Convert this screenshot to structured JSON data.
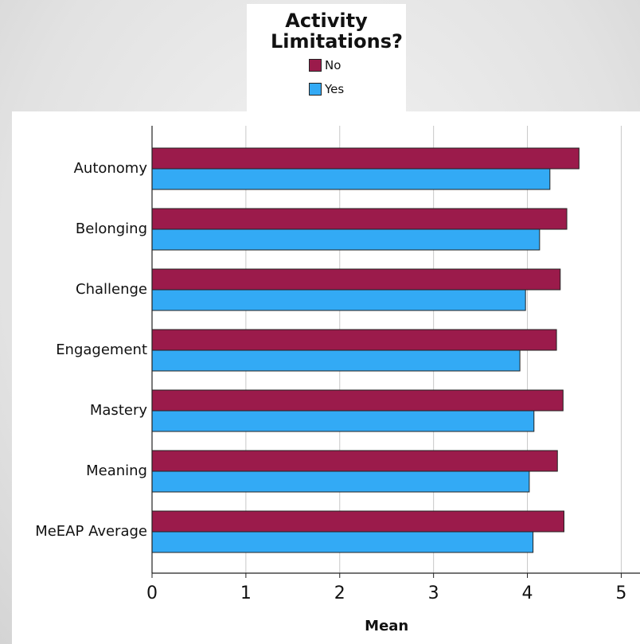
{
  "chart_data": {
    "type": "barh",
    "legend_title": "Activity Limitations?",
    "x_label": "Mean",
    "categories": [
      "Autonomy",
      "Belonging",
      "Challenge",
      "Engagement",
      "Mastery",
      "Meaning",
      "MeEAP Average"
    ],
    "series": [
      {
        "name": "No",
        "color": "#9b1b4b",
        "values": [
          4.55,
          4.42,
          4.35,
          4.31,
          4.38,
          4.32,
          4.39
        ]
      },
      {
        "name": "Yes",
        "color": "#33aaf5",
        "values": [
          4.24,
          4.13,
          3.98,
          3.92,
          4.07,
          4.02,
          4.06
        ]
      }
    ],
    "xlim": [
      0,
      5.2
    ],
    "xticks": [
      0,
      1,
      2,
      3,
      4,
      5
    ],
    "grid": true
  }
}
